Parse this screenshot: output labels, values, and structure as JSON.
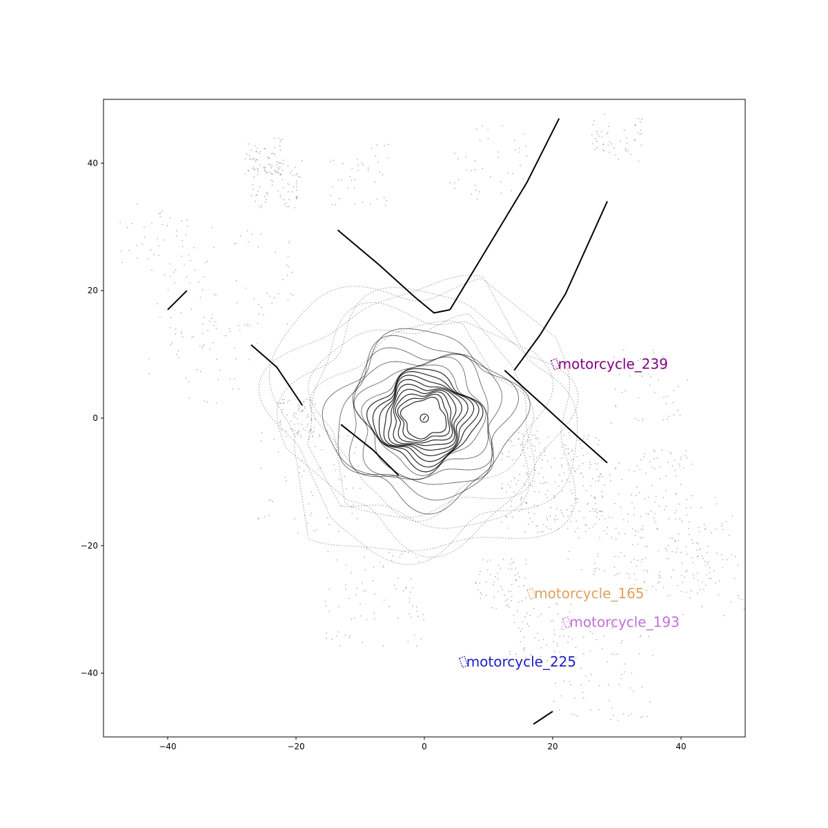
{
  "chart_data": {
    "type": "scatter",
    "title": "",
    "xlabel": "",
    "ylabel": "",
    "xlim": [
      -50,
      50
    ],
    "ylim": [
      -50,
      50
    ],
    "xticks": [
      -40,
      -20,
      0,
      20,
      40
    ],
    "yticks": [
      -40,
      -20,
      0,
      20,
      40
    ],
    "xtick_labels": [
      "−40",
      "−20",
      "0",
      "20",
      "40"
    ],
    "ytick_labels": [
      "−40",
      "−20",
      "0",
      "20",
      "40"
    ],
    "grid": false,
    "point_color": "#000000",
    "ego": {
      "x": 0,
      "y": 0
    },
    "walls": [
      {
        "x": [
          -13.5,
          -7,
          -1.5,
          1.5,
          4
        ],
        "y": [
          29.5,
          24,
          19,
          16.5,
          17
        ]
      },
      {
        "x": [
          4,
          10,
          16,
          21
        ],
        "y": [
          17,
          27,
          37,
          47
        ]
      },
      {
        "x": [
          14,
          18,
          22,
          28.5
        ],
        "y": [
          7.5,
          13,
          19.5,
          34
        ]
      },
      {
        "x": [
          12.5,
          18,
          24,
          28.5
        ],
        "y": [
          7.5,
          2.5,
          -3,
          -7
        ]
      },
      {
        "x": [
          -27,
          -23,
          -19
        ],
        "y": [
          11.5,
          8,
          2
        ]
      },
      {
        "x": [
          -13,
          -8,
          -4
        ],
        "y": [
          -1,
          -5,
          -9
        ]
      },
      {
        "x": [
          -40,
          -37
        ],
        "y": [
          17,
          20
        ]
      },
      {
        "x": [
          17,
          20
        ],
        "y": [
          -48,
          -46
        ]
      }
    ],
    "objects": [
      {
        "label": "motorcycle_239",
        "x": 20.5,
        "y": 8.5,
        "color": "#800080"
      },
      {
        "label": "motorcycle_165",
        "x": 16.8,
        "y": -27.5,
        "color": "#e0a060"
      },
      {
        "label": "motorcycle_193",
        "x": 22.3,
        "y": -32.0,
        "color": "#c070d8"
      },
      {
        "label": "motorcycle_225",
        "x": 6.2,
        "y": -38.2,
        "color": "#2020c0"
      }
    ]
  }
}
